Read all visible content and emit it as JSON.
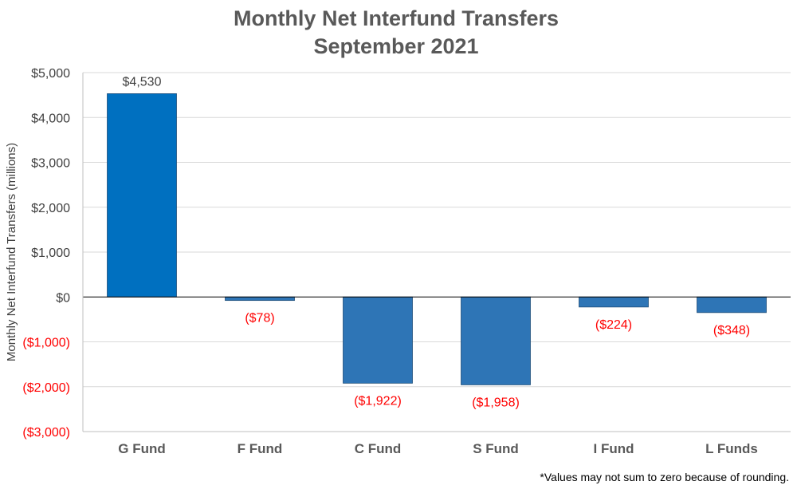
{
  "chart_data": {
    "type": "bar",
    "title": "Monthly Net Interfund Transfers",
    "subtitle": "September 2021",
    "ylabel": "Monthly Net Interfund Transfers (millions)",
    "xlabel": "",
    "categories": [
      "G Fund",
      "F Fund",
      "C Fund",
      "S Fund",
      "I Fund",
      "L Funds"
    ],
    "values": [
      4530,
      -78,
      -1922,
      -1958,
      -224,
      -348
    ],
    "data_labels": [
      "$4,530",
      "($78)",
      "($1,922)",
      "($1,958)",
      "($224)",
      "($348)"
    ],
    "ylim": [
      -3000,
      5000
    ],
    "yticks": [
      5000,
      4000,
      3000,
      2000,
      1000,
      0,
      -1000,
      -2000,
      -3000
    ],
    "ytick_labels": [
      "$5,000",
      "$4,000",
      "$3,000",
      "$2,000",
      "$1,000",
      "$0",
      "($1,000)",
      "($2,000)",
      "($3,000)"
    ],
    "grid": true,
    "legend": "none",
    "footnote": "*Values may not sum to zero because of rounding."
  },
  "colors": {
    "highlight_bar": "#0070C0",
    "bar": "#2E75B6",
    "bar_outline": "#1F4E79",
    "positive_text": "#404040",
    "negative_text": "#FF0000",
    "title": "#595959",
    "grid": "#D9D9D9",
    "axis": "#000000"
  }
}
